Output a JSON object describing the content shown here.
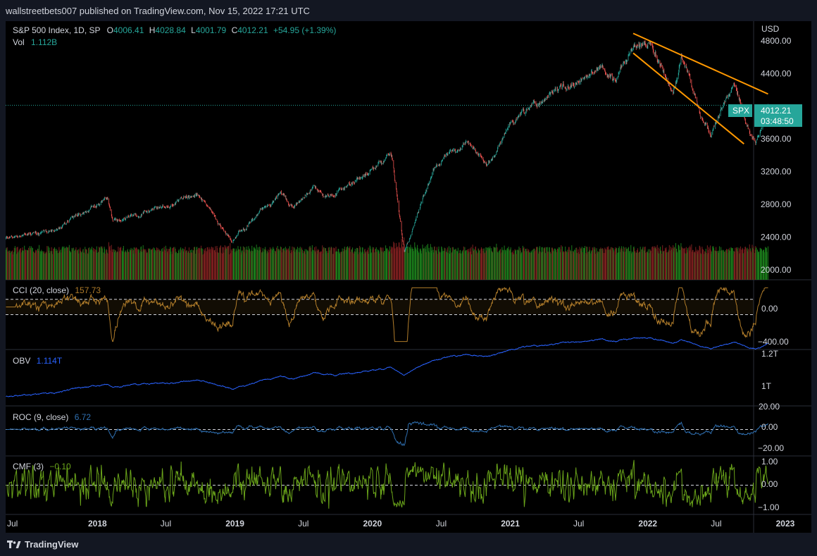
{
  "header": {
    "published": "wallstreetbets007 published on TradingView.com, Nov 15, 2022 17:21 UTC"
  },
  "footer": {
    "brand": "TradingView"
  },
  "main": {
    "symbol_title": "S&P 500 Index, 1D, SP",
    "ohlc": {
      "o_label": "O",
      "o": "4006.41",
      "h_label": "H",
      "h": "4028.84",
      "l_label": "L",
      "l": "4001.79",
      "c_label": "C",
      "c": "4012.21",
      "change": "+54.95 (+1.39%)"
    },
    "vol_label": "Vol",
    "vol_value": "1.112B",
    "currency": "USD",
    "price_axis": [
      "4800.00",
      "4400.00",
      "3600.00",
      "3200.00",
      "2800.00",
      "2400.00",
      "2000.00"
    ],
    "last_price": {
      "symbol": "SPX",
      "price": "4012.21",
      "countdown": "03:48:50"
    }
  },
  "indicators": {
    "cci": {
      "label": "CCI (20, close)",
      "value": "157.73",
      "axis": [
        "0.00",
        "−400.00"
      ]
    },
    "obv": {
      "label": "OBV",
      "value": "1.114T",
      "axis": [
        "1.2T",
        "1T"
      ]
    },
    "roc": {
      "label": "ROC (9, close)",
      "value": "6.72",
      "axis": [
        "20.00",
        "0.00",
        "−20.00"
      ]
    },
    "cmf": {
      "label": "CMF (3)",
      "value": "−0.10",
      "axis": [
        "1.00",
        "0.00",
        "−1.00"
      ]
    }
  },
  "time_axis": [
    "Jul",
    "2018",
    "Jul",
    "2019",
    "Jul",
    "2020",
    "Jul",
    "2021",
    "Jul",
    "2022",
    "Jul",
    "2023"
  ],
  "colors": {
    "up": "#26a69a",
    "down": "#ef5350",
    "vol_up": "#1b7a1b",
    "vol_down": "#7a1f1f",
    "trendline": "#ff9800",
    "cci": "#b07c2a",
    "obv": "#2962ff",
    "roc": "#2f6fb0",
    "cmf": "#6aa41a",
    "green_text": "#26a69a"
  },
  "chart_data": {
    "type": "candlestick",
    "symbol": "SPX",
    "interval": "1D",
    "price_range": [
      1880,
      5040
    ],
    "date_range": [
      "2017-05-01",
      "2023-03-10"
    ],
    "price_anchors": [
      [
        "2017-05-01",
        2390
      ],
      [
        "2017-09-01",
        2470
      ],
      [
        "2018-01-26",
        2870
      ],
      [
        "2018-02-09",
        2590
      ],
      [
        "2018-06-01",
        2730
      ],
      [
        "2018-09-20",
        2930
      ],
      [
        "2018-12-24",
        2350
      ],
      [
        "2019-04-30",
        2940
      ],
      [
        "2019-06-03",
        2750
      ],
      [
        "2019-07-26",
        3020
      ],
      [
        "2019-08-26",
        2850
      ],
      [
        "2019-12-31",
        3230
      ],
      [
        "2020-02-19",
        3390
      ],
      [
        "2020-03-23",
        2240
      ],
      [
        "2020-06-08",
        3230
      ],
      [
        "2020-09-02",
        3580
      ],
      [
        "2020-10-30",
        3270
      ],
      [
        "2020-12-31",
        3760
      ],
      [
        "2021-04-15",
        4170
      ],
      [
        "2021-06-30",
        4300
      ],
      [
        "2021-09-02",
        4540
      ],
      [
        "2021-10-04",
        4300
      ],
      [
        "2021-11-18",
        4700
      ],
      [
        "2022-01-03",
        4800
      ],
      [
        "2022-03-08",
        4170
      ],
      [
        "2022-03-29",
        4630
      ],
      [
        "2022-05-20",
        3900
      ],
      [
        "2022-06-16",
        3670
      ],
      [
        "2022-08-16",
        4300
      ],
      [
        "2022-09-30",
        3590
      ],
      [
        "2022-10-12",
        3570
      ],
      [
        "2022-11-14",
        4012
      ]
    ],
    "trendlines": [
      {
        "from": [
          "2021-11-22",
          4890
        ],
        "to": [
          "2022-11-15",
          4150
        ]
      },
      {
        "from": [
          "2021-11-22",
          4650
        ],
        "to": [
          "2022-09-12",
          3540
        ]
      }
    ],
    "last_close": 4012.21,
    "indicators": {
      "cci": {
        "params": [
          20
        ],
        "last": 157.73,
        "bands": [
          100,
          -100
        ],
        "range": [
          -500,
          300
        ]
      },
      "obv": {
        "last": "1.114T",
        "range": [
          "0.95T",
          "1.22T"
        ]
      },
      "roc": {
        "params": [
          9
        ],
        "last": 6.72,
        "range": [
          -25,
          22
        ]
      },
      "cmf": {
        "params": [
          3
        ],
        "last": -0.1,
        "range": [
          -1.05,
          1.05
        ]
      }
    }
  }
}
